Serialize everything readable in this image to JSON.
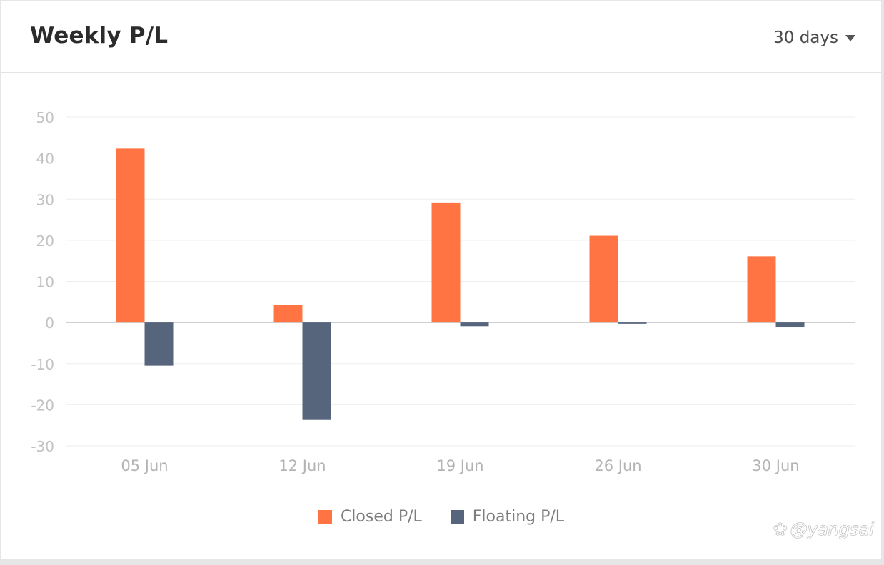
{
  "header": {
    "title": "Weekly P/L",
    "range_label": "30 days"
  },
  "watermark": "@yangsai",
  "colors": {
    "closed": "#ff7442",
    "floating": "#56647c",
    "grid": "#eeeeee",
    "zero_line": "#c8c8c8",
    "tick_text": "#c2c2c2",
    "x_text": "#b4b4b4"
  },
  "chart_data": {
    "type": "bar",
    "categories": [
      "05 Jun",
      "12 Jun",
      "19 Jun",
      "26 Jun",
      "30 Jun"
    ],
    "series": [
      {
        "name": "Closed P/L",
        "values": [
          42.3,
          4.2,
          29.2,
          21.1,
          16.1
        ]
      },
      {
        "name": "Floating P/L",
        "values": [
          -10.5,
          -23.7,
          -0.9,
          -0.3,
          -1.2
        ]
      }
    ],
    "yticks": [
      50,
      40,
      30,
      20,
      10,
      0,
      -10,
      -20,
      -30
    ],
    "ytick_labels": [
      "50",
      "40",
      "30",
      "20",
      "10",
      "0",
      "-10",
      "-20",
      "-30"
    ],
    "ylim": [
      -30,
      50
    ],
    "grid": true,
    "legend_position": "bottom-center"
  }
}
